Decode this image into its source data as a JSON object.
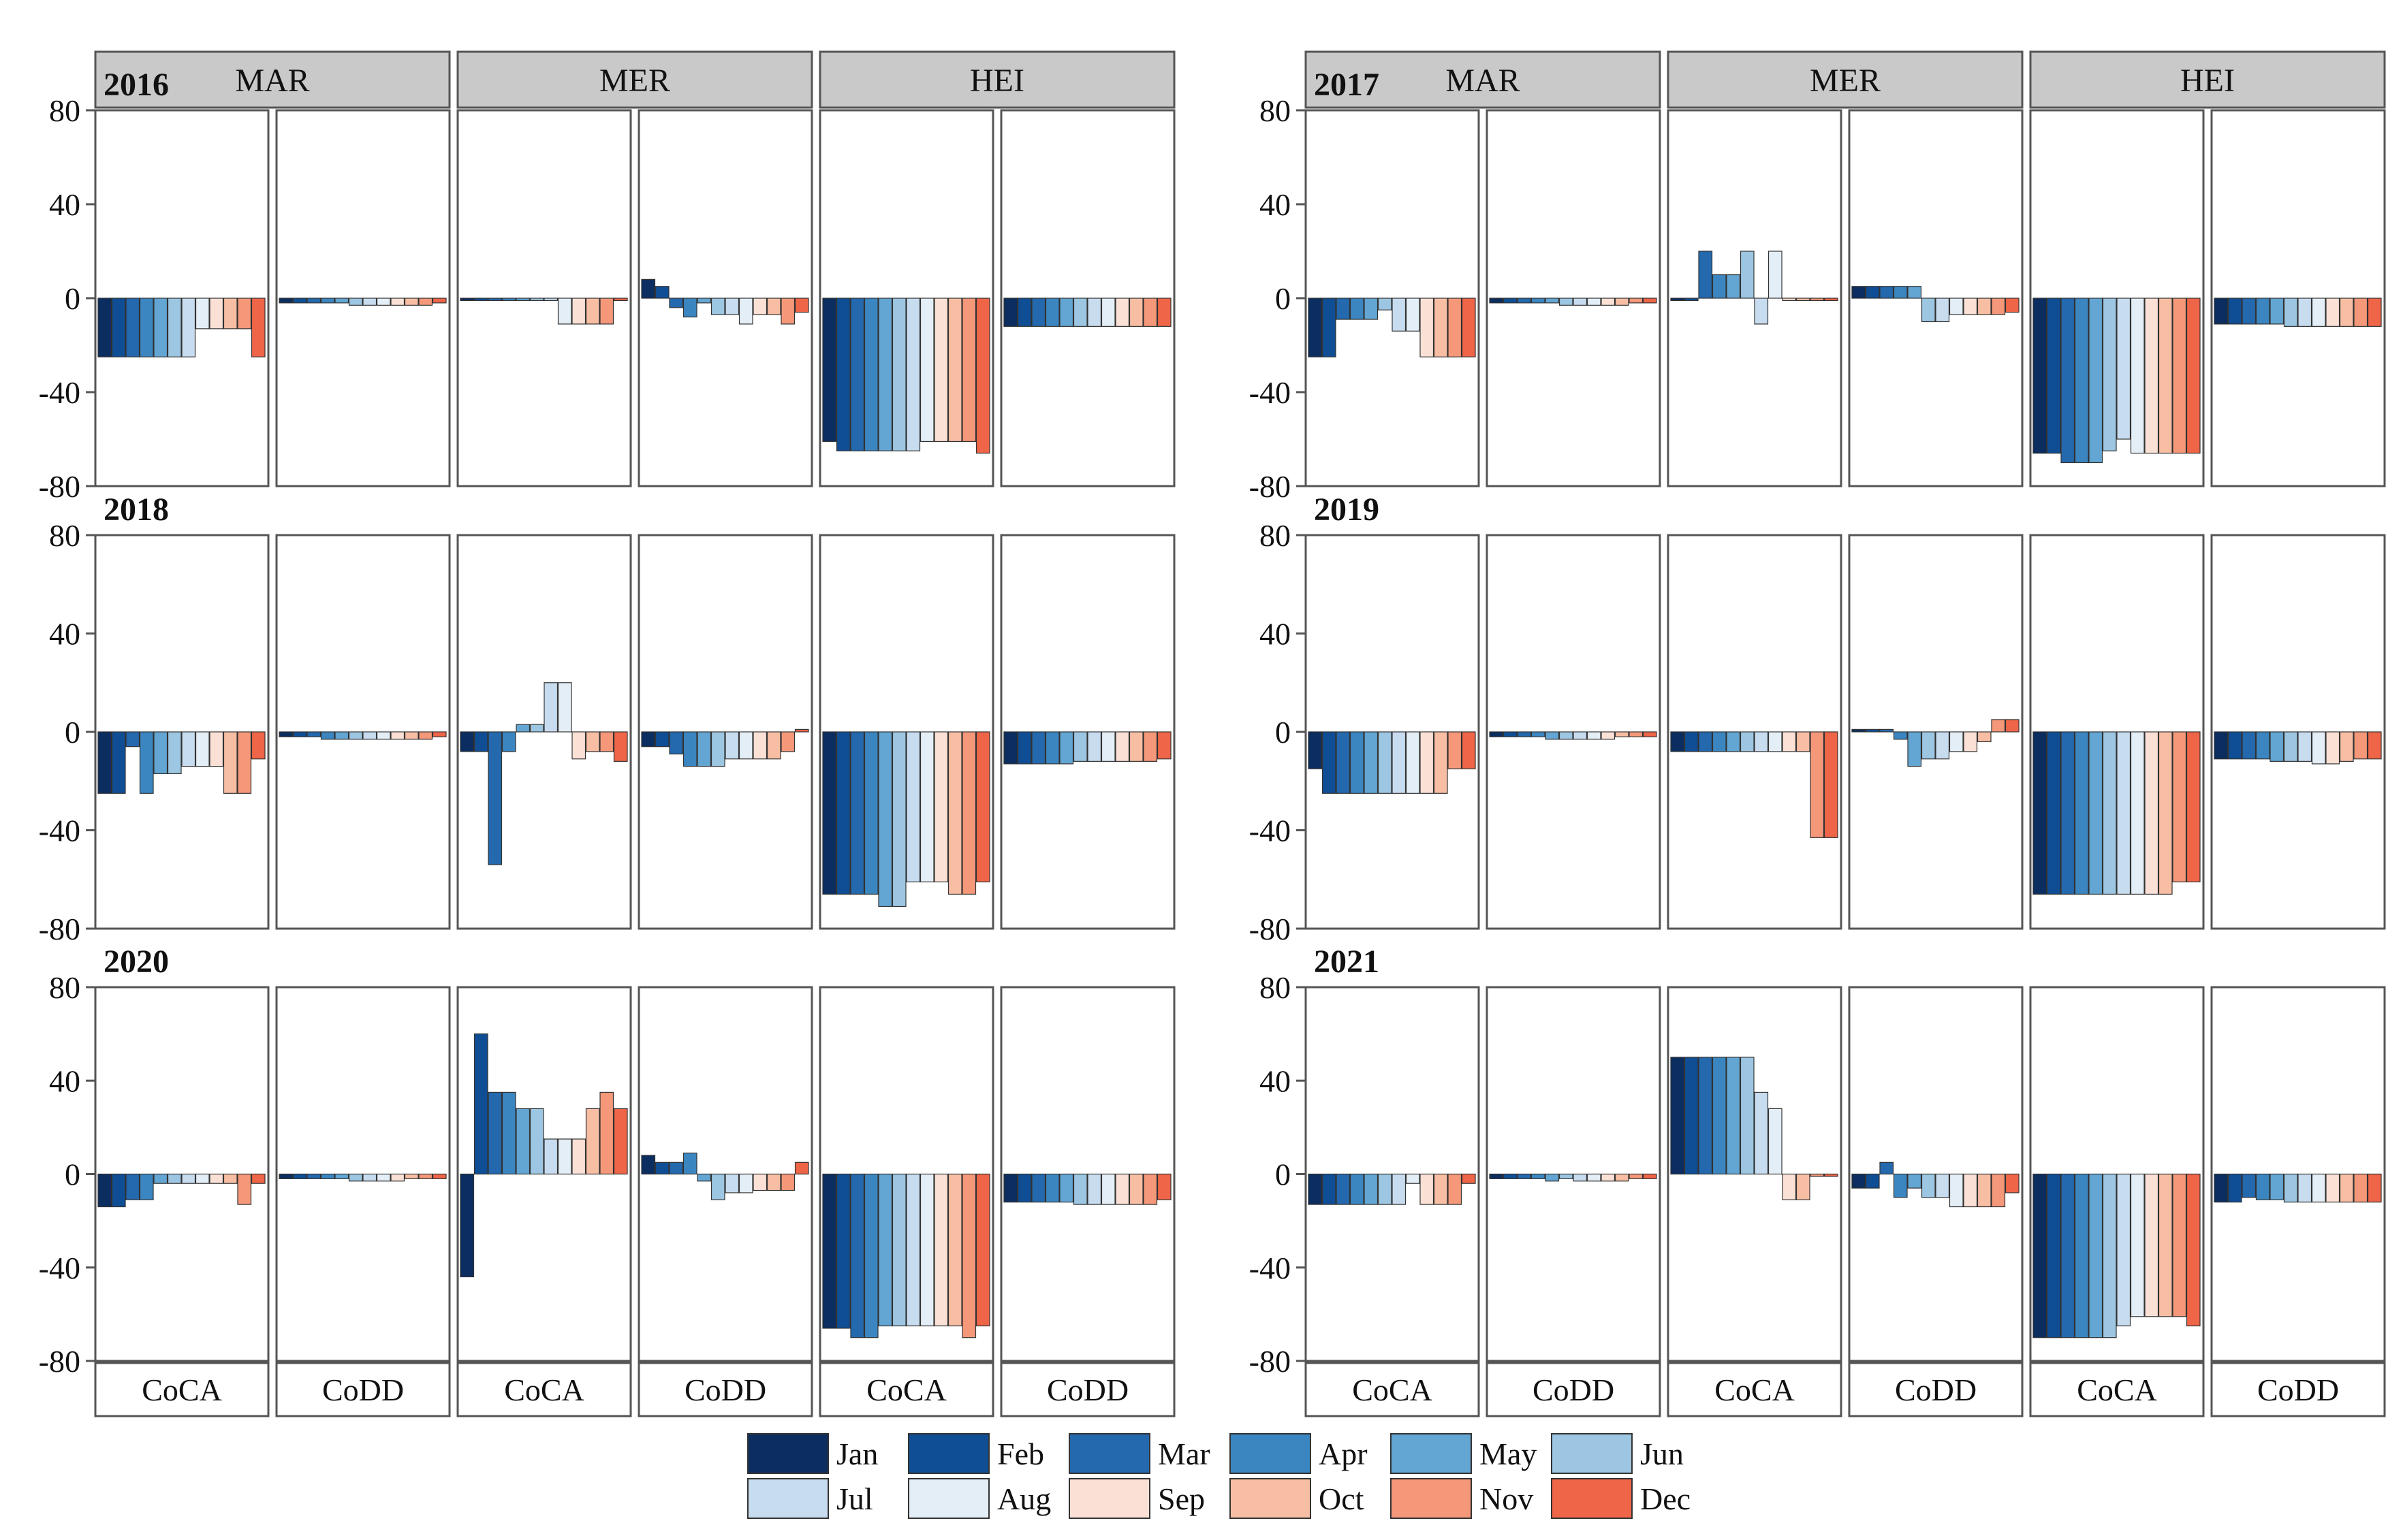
{
  "colors": {
    "months": [
      "#0b2d5f",
      "#0f4e94",
      "#2468ad",
      "#3b86c0",
      "#63a6d3",
      "#9cc6e1",
      "#c8dcef",
      "#e4eef7",
      "#fbe0d5",
      "#f7bea4",
      "#f49879",
      "#ef6548"
    ],
    "strip_fill": "#c9c9c9",
    "frame": "#555555",
    "text": "#111111"
  },
  "chart_data": {
    "type": "bar",
    "facets_rows": [
      "MAR",
      "MER",
      "HEI"
    ],
    "facets_cols": [
      "CoCA",
      "CoDD"
    ],
    "months": [
      "Jan",
      "Feb",
      "Mar",
      "Apr",
      "May",
      "Jun",
      "Jul",
      "Aug",
      "Sep",
      "Oct",
      "Nov",
      "Dec"
    ],
    "ylim": [
      -80,
      80
    ],
    "yticks": [
      80,
      40,
      0,
      -40,
      -80
    ],
    "legend_position": "bottom",
    "panels": [
      {
        "year": "2016",
        "series": {
          "MAR": {
            "CoCA": [
              -25,
              -25,
              -25,
              -25,
              -25,
              -25,
              -25,
              -13,
              -13,
              -13,
              -13,
              -25
            ],
            "CoDD": [
              -2,
              -2,
              -2,
              -2,
              -2,
              -3,
              -3,
              -3,
              -3,
              -3,
              -3,
              -2
            ]
          },
          "MER": {
            "CoCA": [
              -1,
              -1,
              -1,
              -1,
              -1,
              -1,
              -1,
              -11,
              -11,
              -11,
              -11,
              -1
            ],
            "CoDD": [
              8,
              5,
              -4,
              -8,
              -2,
              -7,
              -7,
              -11,
              -7,
              -7,
              -11,
              -6
            ]
          },
          "HEI": {
            "CoCA": [
              -61,
              -65,
              -65,
              -65,
              -65,
              -65,
              -65,
              -61,
              -61,
              -61,
              -61,
              -66
            ],
            "CoDD": [
              -12,
              -12,
              -12,
              -12,
              -12,
              -12,
              -12,
              -12,
              -12,
              -12,
              -12,
              -12
            ]
          }
        }
      },
      {
        "year": "2017",
        "series": {
          "MAR": {
            "CoCA": [
              -25,
              -25,
              -9,
              -9,
              -9,
              -5,
              -14,
              -14,
              -25,
              -25,
              -25,
              -25
            ],
            "CoDD": [
              -2,
              -2,
              -2,
              -2,
              -2,
              -3,
              -3,
              -3,
              -3,
              -3,
              -2,
              -2
            ]
          },
          "MER": {
            "CoCA": [
              -1,
              -1,
              20,
              10,
              10,
              20,
              -11,
              20,
              -1,
              -1,
              -1,
              -1
            ],
            "CoDD": [
              5,
              5,
              5,
              5,
              5,
              -10,
              -10,
              -7,
              -7,
              -7,
              -7,
              -6
            ]
          },
          "HEI": {
            "CoCA": [
              -66,
              -66,
              -70,
              -70,
              -70,
              -65,
              -60,
              -66,
              -66,
              -66,
              -66,
              -66
            ],
            "CoDD": [
              -11,
              -11,
              -11,
              -11,
              -11,
              -12,
              -12,
              -12,
              -12,
              -12,
              -12,
              -12
            ]
          }
        }
      },
      {
        "year": "2018",
        "series": {
          "MAR": {
            "CoCA": [
              -25,
              -25,
              -6,
              -25,
              -17,
              -17,
              -14,
              -14,
              -14,
              -25,
              -25,
              -11
            ],
            "CoDD": [
              -2,
              -2,
              -2,
              -3,
              -3,
              -3,
              -3,
              -3,
              -3,
              -3,
              -3,
              -2
            ]
          },
          "MER": {
            "CoCA": [
              -8,
              -8,
              -54,
              -8,
              3,
              3,
              20,
              20,
              -11,
              -8,
              -8,
              -12
            ],
            "CoDD": [
              -6,
              -6,
              -9,
              -14,
              -14,
              -14,
              -11,
              -11,
              -11,
              -11,
              -8,
              1
            ]
          },
          "HEI": {
            "CoCA": [
              -66,
              -66,
              -66,
              -66,
              -71,
              -71,
              -61,
              -61,
              -61,
              -66,
              -66,
              -61
            ],
            "CoDD": [
              -13,
              -13,
              -13,
              -13,
              -13,
              -12,
              -12,
              -12,
              -12,
              -12,
              -12,
              -11
            ]
          }
        }
      },
      {
        "year": "2019",
        "series": {
          "MAR": {
            "CoCA": [
              -15,
              -25,
              -25,
              -25,
              -25,
              -25,
              -25,
              -25,
              -25,
              -25,
              -15,
              -15
            ],
            "CoDD": [
              -2,
              -2,
              -2,
              -2,
              -3,
              -3,
              -3,
              -3,
              -3,
              -2,
              -2,
              -2
            ]
          },
          "MER": {
            "CoCA": [
              -8,
              -8,
              -8,
              -8,
              -8,
              -8,
              -8,
              -8,
              -8,
              -8,
              -43,
              -43
            ],
            "CoDD": [
              1,
              1,
              1,
              -3,
              -14,
              -11,
              -11,
              -8,
              -8,
              -4,
              5,
              5
            ]
          },
          "HEI": {
            "CoCA": [
              -66,
              -66,
              -66,
              -66,
              -66,
              -66,
              -66,
              -66,
              -66,
              -66,
              -61,
              -61
            ],
            "CoDD": [
              -11,
              -11,
              -11,
              -11,
              -12,
              -12,
              -12,
              -13,
              -13,
              -12,
              -11,
              -11
            ]
          }
        }
      },
      {
        "year": "2020",
        "series": {
          "MAR": {
            "CoCA": [
              -14,
              -14,
              -11,
              -11,
              -4,
              -4,
              -4,
              -4,
              -4,
              -4,
              -13,
              -4
            ],
            "CoDD": [
              -2,
              -2,
              -2,
              -2,
              -2,
              -3,
              -3,
              -3,
              -3,
              -2,
              -2,
              -2
            ]
          },
          "MER": {
            "CoCA": [
              -44,
              60,
              35,
              35,
              28,
              28,
              15,
              15,
              15,
              28,
              35,
              28
            ],
            "CoDD": [
              8,
              5,
              5,
              9,
              -3,
              -11,
              -8,
              -8,
              -7,
              -7,
              -7,
              5
            ]
          },
          "HEI": {
            "CoCA": [
              -66,
              -66,
              -70,
              -70,
              -65,
              -65,
              -65,
              -65,
              -65,
              -65,
              -70,
              -65
            ],
            "CoDD": [
              -12,
              -12,
              -12,
              -12,
              -12,
              -13,
              -13,
              -13,
              -13,
              -13,
              -13,
              -11
            ]
          }
        }
      },
      {
        "year": "2021",
        "series": {
          "MAR": {
            "CoCA": [
              -13,
              -13,
              -13,
              -13,
              -13,
              -13,
              -13,
              -4,
              -13,
              -13,
              -13,
              -4
            ],
            "CoDD": [
              -2,
              -2,
              -2,
              -2,
              -3,
              -2,
              -3,
              -3,
              -3,
              -3,
              -2,
              -2
            ]
          },
          "MER": {
            "CoCA": [
              50,
              50,
              50,
              50,
              50,
              50,
              35,
              28,
              -11,
              -11,
              -1,
              -1
            ],
            "CoDD": [
              -6,
              -6,
              5,
              -10,
              -6,
              -10,
              -10,
              -14,
              -14,
              -14,
              -14,
              -8
            ]
          },
          "HEI": {
            "CoCA": [
              -70,
              -70,
              -70,
              -70,
              -70,
              -70,
              -65,
              -61,
              -61,
              -61,
              -61,
              -65
            ],
            "CoDD": [
              -12,
              -12,
              -10,
              -11,
              -11,
              -12,
              -12,
              -12,
              -12,
              -12,
              -12,
              -12
            ]
          }
        }
      }
    ]
  }
}
